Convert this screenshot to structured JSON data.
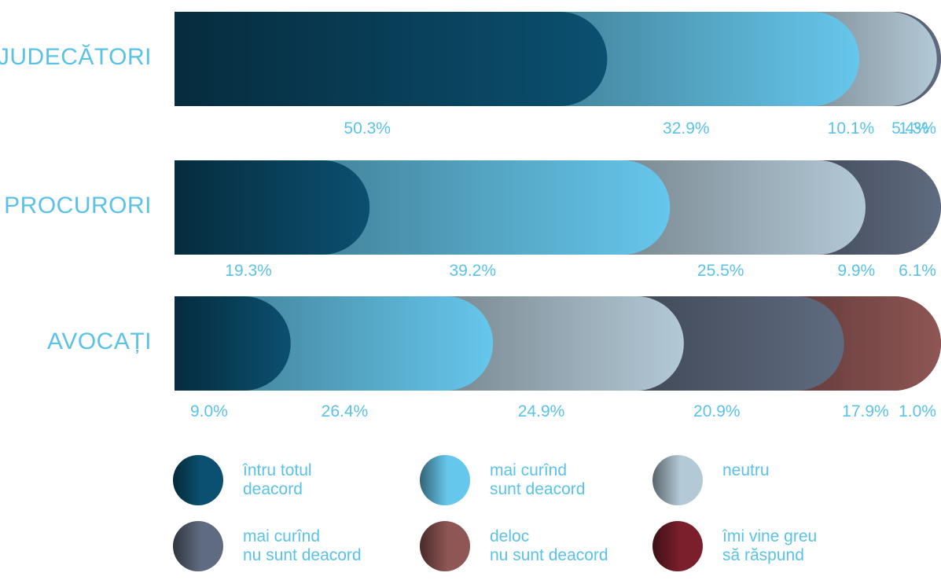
{
  "chart_data": {
    "type": "bar",
    "orientation": "horizontal",
    "stacked": true,
    "unit": "%",
    "categories": [
      "JUDECĂTORI",
      "PROCURORI",
      "AVOCAȚI"
    ],
    "series": [
      {
        "name": "întru totul deacord",
        "name_lines": [
          "întru totul",
          "deacord"
        ],
        "color": "#0b5070",
        "values": [
          50.3,
          19.3,
          9.0
        ],
        "labels": [
          "50.3%",
          "19.3%",
          "9.0%"
        ]
      },
      {
        "name": "mai curînd sunt deacord",
        "name_lines": [
          "mai curînd",
          "sunt deacord"
        ],
        "color": "#66c7ec",
        "values": [
          32.9,
          39.2,
          26.4
        ],
        "labels": [
          "32.9%",
          "39.2%",
          "26.4%"
        ]
      },
      {
        "name": "neutru",
        "name_lines": [
          "neutru"
        ],
        "color": "#b3c9d6",
        "values": [
          10.1,
          25.5,
          24.9
        ],
        "labels": [
          "10.1%",
          "25.5%",
          "24.9%"
        ]
      },
      {
        "name": "mai curînd nu sunt deacord",
        "name_lines": [
          "mai curînd",
          "nu sunt deacord"
        ],
        "color": "#5f6b80",
        "values": [
          5.4,
          9.9,
          20.9
        ],
        "labels": [
          "5.4%",
          "9.9%",
          "20.9%"
        ]
      },
      {
        "name": "deloc nu sunt deacord",
        "name_lines": [
          "deloc",
          "nu sunt deacord"
        ],
        "color": "#8e5654",
        "values": [
          1.3,
          6.1,
          17.9
        ],
        "labels": [
          "1.3%",
          "6.1%",
          "17.9%"
        ]
      },
      {
        "name": "îmi vine greu să răspund",
        "name_lines": [
          "îmi vine greu",
          "să răspund"
        ],
        "color": "#7a1f2b",
        "values": [
          0.0,
          0.0,
          1.0
        ],
        "labels": [
          "",
          "",
          "1.0%"
        ]
      }
    ],
    "legend": "bottom",
    "grid": false
  }
}
